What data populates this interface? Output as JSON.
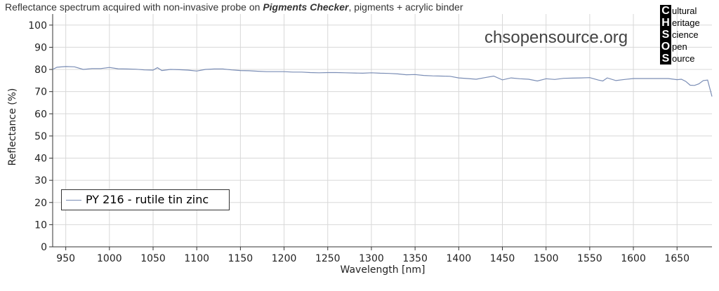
{
  "title": {
    "prefix": "Reflectance spectrum acquired with non-invasive probe on ",
    "emphasis": "Pigments Checker",
    "suffix": ", pigments + acrylic binder"
  },
  "watermark": "chsopensource.org",
  "logo": [
    {
      "letter": "C",
      "word": "ultural"
    },
    {
      "letter": "H",
      "word": "eritage"
    },
    {
      "letter": "S",
      "word": "cience"
    },
    {
      "letter": "O",
      "word": "pen"
    },
    {
      "letter": "S",
      "word": "ource"
    }
  ],
  "colors": {
    "series": "#7a8db5",
    "grid": "#d8d8d8",
    "axis": "#333333"
  },
  "chart_data": {
    "type": "line",
    "title": "Reflectance spectrum acquired with non-invasive probe on Pigments Checker, pigments + acrylic binder",
    "xlabel": "Wavelength [nm]",
    "ylabel": "Reflectance (%)",
    "xlim": [
      935,
      1690
    ],
    "ylim": [
      0,
      105
    ],
    "xticks": [
      950,
      1000,
      1050,
      1100,
      1150,
      1200,
      1250,
      1300,
      1350,
      1400,
      1450,
      1500,
      1550,
      1600,
      1650
    ],
    "yticks": [
      0,
      10,
      20,
      30,
      40,
      50,
      60,
      70,
      80,
      90,
      100
    ],
    "grid": true,
    "legend_position": "bottom-left",
    "series": [
      {
        "name": "PY 216 - rutile tin zinc",
        "x": [
          935,
          940,
          950,
          960,
          970,
          980,
          990,
          1000,
          1010,
          1020,
          1030,
          1040,
          1050,
          1055,
          1060,
          1070,
          1080,
          1090,
          1100,
          1110,
          1120,
          1130,
          1140,
          1150,
          1160,
          1170,
          1180,
          1190,
          1200,
          1210,
          1220,
          1230,
          1240,
          1250,
          1260,
          1270,
          1280,
          1290,
          1300,
          1310,
          1320,
          1330,
          1340,
          1350,
          1360,
          1370,
          1380,
          1390,
          1400,
          1410,
          1420,
          1430,
          1440,
          1450,
          1460,
          1470,
          1480,
          1490,
          1500,
          1510,
          1520,
          1530,
          1540,
          1550,
          1560,
          1565,
          1570,
          1580,
          1590,
          1600,
          1610,
          1620,
          1630,
          1640,
          1650,
          1655,
          1660,
          1665,
          1670,
          1675,
          1680,
          1685,
          1690
        ],
        "y": [
          80.0,
          81.0,
          81.3,
          81.2,
          80.0,
          80.4,
          80.4,
          80.9,
          80.3,
          80.2,
          80.1,
          79.8,
          79.7,
          80.8,
          79.5,
          80.0,
          79.9,
          79.7,
          79.3,
          80.0,
          80.2,
          80.2,
          79.8,
          79.5,
          79.4,
          79.2,
          79.0,
          79.0,
          79.0,
          78.8,
          78.8,
          78.6,
          78.5,
          78.6,
          78.6,
          78.5,
          78.4,
          78.3,
          78.5,
          78.3,
          78.2,
          78.0,
          77.6,
          77.7,
          77.3,
          77.1,
          77.0,
          76.9,
          76.2,
          75.9,
          75.6,
          76.3,
          77.0,
          75.3,
          76.2,
          75.8,
          75.6,
          74.8,
          75.8,
          75.5,
          76.0,
          76.1,
          76.2,
          76.3,
          75.2,
          74.8,
          76.2,
          75.0,
          75.5,
          75.9,
          75.9,
          75.9,
          75.9,
          75.9,
          75.4,
          75.6,
          74.6,
          72.9,
          72.8,
          73.5,
          75.0,
          75.2,
          67.8
        ]
      }
    ]
  }
}
